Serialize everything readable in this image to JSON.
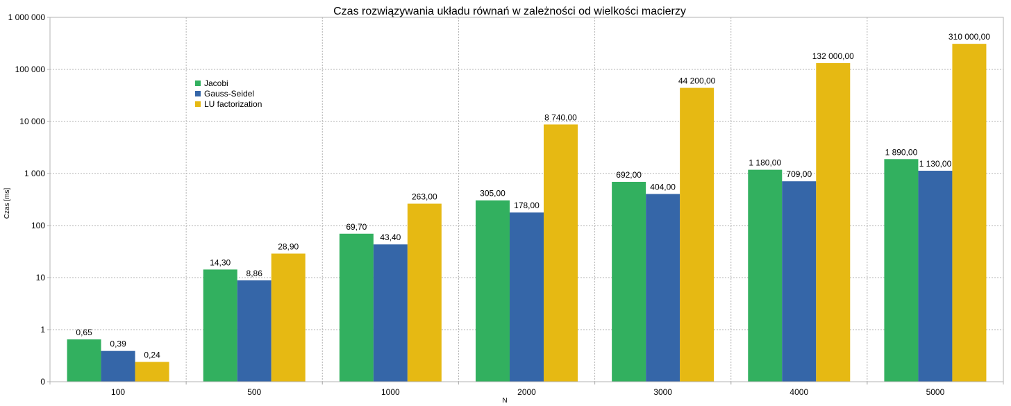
{
  "chart_data": {
    "type": "bar",
    "title": "Czas rozwiązywania układu równań w zależności od wielkości macierzy",
    "xlabel": "N",
    "ylabel": "Czas [ms]",
    "yscale": "log",
    "ylim": [
      0.1,
      1000000
    ],
    "grid": true,
    "legend_position": "top-left",
    "categories": [
      "100",
      "500",
      "1000",
      "2000",
      "3000",
      "4000",
      "5000"
    ],
    "y_ticks": [
      0.1,
      1,
      10,
      100,
      1000,
      10000,
      100000,
      1000000
    ],
    "y_tick_labels": [
      "0",
      "1",
      "10",
      "100",
      "1 000",
      "10 000",
      "100 000",
      "1 000 000"
    ],
    "series": [
      {
        "name": "Jacobi",
        "color": "#32b05f",
        "values": [
          0.65,
          14.3,
          69.7,
          305,
          692,
          1180,
          1890
        ],
        "labels": [
          "0,65",
          "14,30",
          "69,70",
          "305,00",
          "692,00",
          "1 180,00",
          "1 890,00"
        ]
      },
      {
        "name": "Gauss-Seidel",
        "color": "#3566a8",
        "values": [
          0.39,
          8.86,
          43.4,
          178,
          404,
          709,
          1130
        ],
        "labels": [
          "0,39",
          "8,86",
          "43,40",
          "178,00",
          "404,00",
          "709,00",
          "1 130,00"
        ]
      },
      {
        "name": "LU factorization",
        "color": "#e6b913",
        "values": [
          0.24,
          28.9,
          263,
          8740,
          44200,
          132000,
          310000
        ],
        "labels": [
          "0,24",
          "28,90",
          "263,00",
          "8 740,00",
          "44 200,00",
          "132 000,00",
          "310 000,00"
        ]
      }
    ]
  }
}
